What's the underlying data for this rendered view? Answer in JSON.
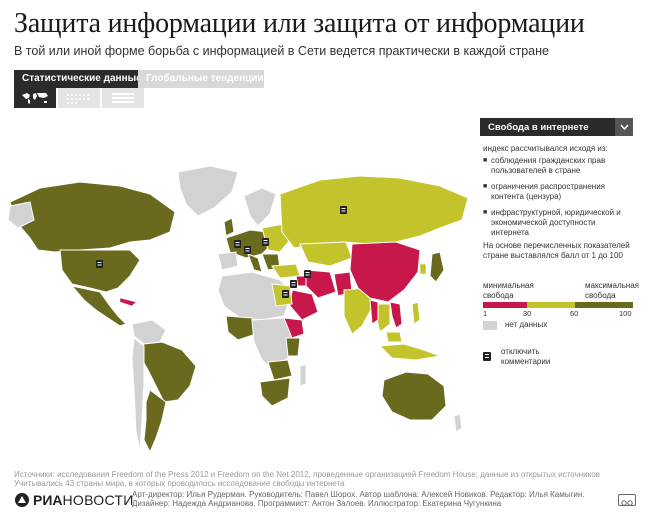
{
  "header": {
    "title": "Защита информации или защита от информации",
    "subtitle": "В той или иной форме борьба с информацией в Сети ведется практически в каждой стране"
  },
  "tabs": [
    {
      "label": "Статистические данные",
      "active": true
    },
    {
      "label": "Глобальные тенденции",
      "active": false
    }
  ],
  "view_buttons": [
    {
      "icon": "world-map-icon",
      "active": true
    },
    {
      "icon": "dotted-grid-icon",
      "active": false
    },
    {
      "icon": "list-icon",
      "active": false
    }
  ],
  "panel": {
    "dropdown_value": "Свобода в интернете",
    "intro": "индекс рассчитывался исходя из:",
    "criteria": [
      "соблюдения гражданских прав пользователей в стране",
      "ограничения распространения контента (цензура)",
      "инфраструктурной, юридической и экономической доступности интернета"
    ],
    "outro": "На основе перечисленных показателей стране выставлялся балл от 1 до 100",
    "min_label": "минимальная свобода",
    "max_label": "максимальная свобода",
    "scale_ticks": [
      "1",
      "30",
      "60",
      "100"
    ],
    "no_data_label": "нет данных",
    "toggle_comments_label": "отключить комментарии"
  },
  "colors": {
    "low": "#c8174a",
    "mid": "#c3c42c",
    "high": "#6a6a1f",
    "no_data": "#d2d2d2",
    "dark_ui": "#2b2b2b"
  },
  "footer": {
    "sources": "Источники: исследования Freedom of the Press 2012 и Freedom on the Net 2012, проведенные организацией Freedom House; данные из открытых источников Учитывались 43 страны мира, в которых проводилось исследование свободы интернета",
    "logo_ria": "РИА",
    "logo_novosti": "НОВОСТИ",
    "credits": "Арт-директор: Илья Рудерман. Руководитель: Павел Шорох. Автор шаблона: Алексей Новиков. Редактор: Илья Камыгин. Дизайнер: Надежда Андрианова. Программист: Антон Залоев. Иллюстратор: Екатерина Чугункина"
  }
}
